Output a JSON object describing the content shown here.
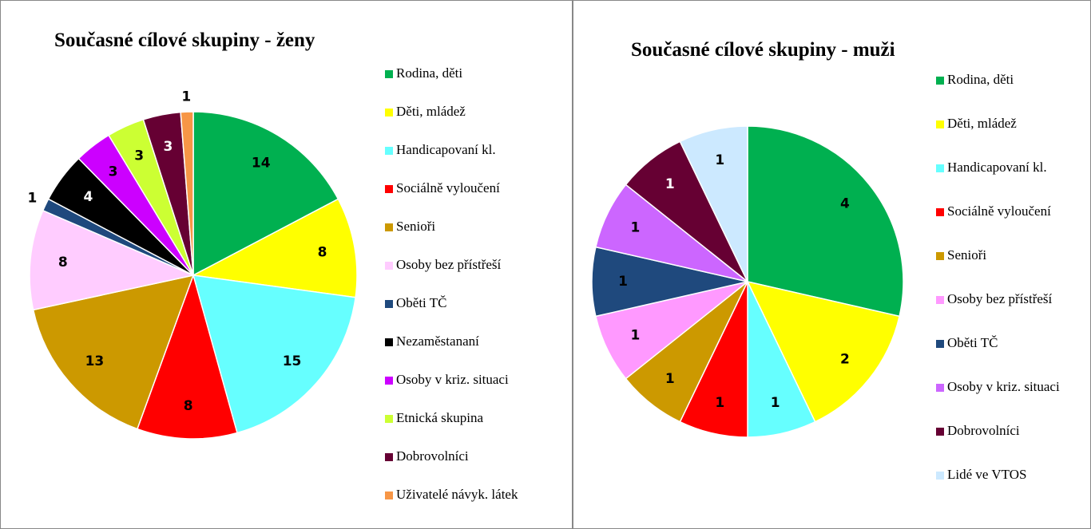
{
  "chart_data": [
    {
      "type": "pie",
      "title": "Současné cílové skupiny - ženy",
      "categories": [
        "Rodina, děti",
        "Děti, mládež",
        "Handicapovaní kl.",
        "Sociálně vyloučení",
        "Senioři",
        "Osoby bez přístřeší",
        "Oběti TČ",
        "Nezaměstananí",
        "Osoby v kriz. situaci",
        "Etnická skupina",
        "Dobrovolníci",
        "Uživatelé návyk. látek"
      ],
      "values": [
        14,
        8,
        15,
        8,
        13,
        8,
        1,
        4,
        3,
        3,
        3,
        1
      ],
      "colors": [
        "#00b050",
        "#ffff00",
        "#66ffff",
        "#ff0000",
        "#cc9900",
        "#ffccff",
        "#1f497d",
        "#000000",
        "#cc00ff",
        "#ccff33",
        "#660033",
        "#f79646"
      ]
    },
    {
      "type": "pie",
      "title": "Současné cílové skupiny - muži",
      "categories": [
        "Rodina, děti",
        "Děti, mládež",
        "Handicapovaní kl.",
        "Sociálně vyloučení",
        "Senioři",
        "Osoby bez přístřeší",
        "Oběti TČ",
        "Osoby v kriz. situaci",
        "Dobrovolníci",
        "Lidé ve VTOS"
      ],
      "values": [
        4,
        2,
        1,
        1,
        1,
        1,
        1,
        1,
        1,
        1
      ],
      "colors": [
        "#00b050",
        "#ffff00",
        "#66ffff",
        "#ff0000",
        "#cc9900",
        "#ff99ff",
        "#1f497d",
        "#cc66ff",
        "#660033",
        "#cce9ff"
      ]
    }
  ]
}
